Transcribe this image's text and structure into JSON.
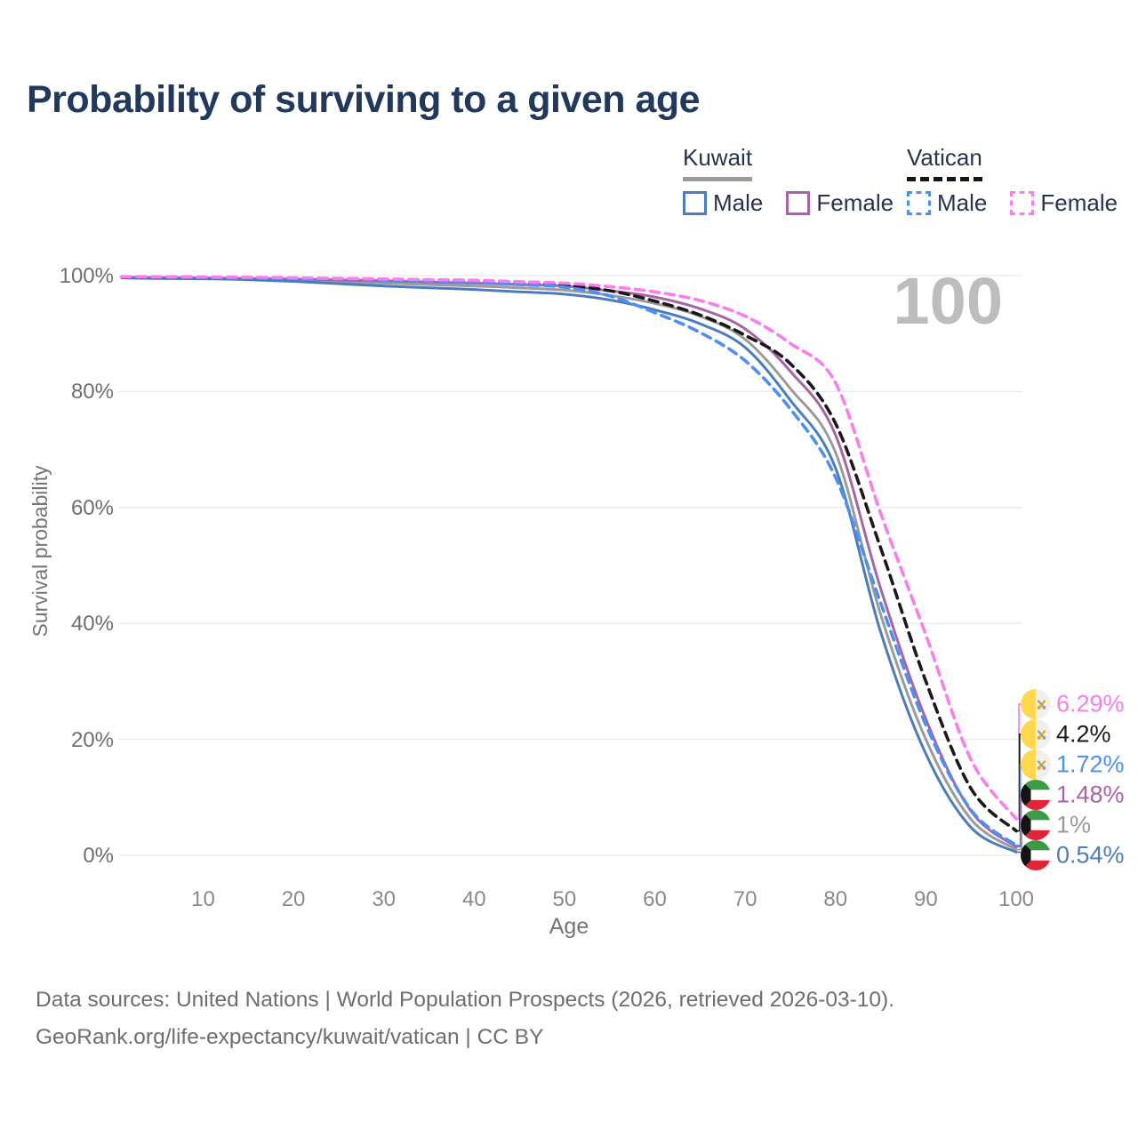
{
  "title": "Probability of surviving to a given age",
  "watermark": "100",
  "legend": {
    "groups": [
      {
        "name": "Kuwait",
        "line_style": "solid",
        "underline_color": "#9b9b9b",
        "items": [
          {
            "label": "Male",
            "color": "#4a7dc0",
            "dashed": false
          },
          {
            "label": "Female",
            "color": "#a963a8",
            "dashed": false
          }
        ]
      },
      {
        "name": "Vatican",
        "line_style": "dashed",
        "underline_color": "#151515",
        "items": [
          {
            "label": "Male",
            "color": "#4a90f7",
            "dashed": true
          },
          {
            "label": "Female",
            "color": "#fc7ced",
            "dashed": true
          }
        ]
      }
    ]
  },
  "axis": {
    "x_label": "Age",
    "y_label": "Survival probability",
    "x_ticks": [
      10,
      20,
      30,
      40,
      50,
      60,
      70,
      80,
      90,
      100
    ],
    "y_ticks": [
      {
        "value": 0,
        "label": "0%"
      },
      {
        "value": 20,
        "label": "20%"
      },
      {
        "value": 40,
        "label": "40%"
      },
      {
        "value": 60,
        "label": "60%"
      },
      {
        "value": 80,
        "label": "80%"
      },
      {
        "value": 100,
        "label": "100%"
      }
    ]
  },
  "chart_data": {
    "type": "line",
    "title": "Probability of surviving to a given age",
    "xlabel": "Age",
    "ylabel": "Survival probability",
    "xlim": [
      1,
      100
    ],
    "ylim": [
      0,
      100
    ],
    "grid": "horizontal",
    "legend_position": "top-right",
    "x": [
      1,
      5,
      10,
      15,
      20,
      25,
      30,
      35,
      40,
      45,
      50,
      55,
      60,
      65,
      70,
      75,
      80,
      85,
      90,
      95,
      100
    ],
    "series": [
      {
        "name": "Kuwait Total",
        "country": "Kuwait",
        "sex": "All",
        "flag": "kuwait",
        "color": "#9b9b9b",
        "dashed": false,
        "end_label": "1%",
        "values": [
          99.65,
          99.6,
          99.5,
          99.4,
          99.2,
          98.95,
          98.7,
          98.45,
          98.2,
          97.9,
          97.5,
          96.6,
          95.2,
          93.0,
          89.0,
          80.5,
          69.5,
          41.5,
          20.0,
          6.2,
          1.0
        ]
      },
      {
        "name": "Kuwait Female",
        "country": "Kuwait",
        "sex": "Female",
        "flag": "kuwait",
        "color": "#a963a8",
        "dashed": false,
        "end_label": "1.48%",
        "values": [
          99.7,
          99.65,
          99.6,
          99.5,
          99.4,
          99.25,
          99.1,
          98.9,
          98.7,
          98.45,
          98.2,
          97.4,
          96.3,
          94.3,
          90.8,
          83.5,
          72.5,
          46.0,
          23.5,
          7.6,
          1.48
        ]
      },
      {
        "name": "Kuwait Male",
        "country": "Kuwait",
        "sex": "Male",
        "flag": "kuwait",
        "color": "#4a7dc0",
        "dashed": false,
        "end_label": "0.54%",
        "values": [
          99.6,
          99.5,
          99.45,
          99.3,
          99.0,
          98.6,
          98.2,
          97.9,
          97.6,
          97.2,
          96.8,
          95.8,
          94.1,
          91.7,
          87.6,
          78.5,
          66.8,
          38.5,
          17.5,
          4.8,
          0.54
        ]
      },
      {
        "name": "Vatican Total",
        "country": "Vatican",
        "sex": "All",
        "flag": "vatican",
        "color": "#1a1a1a",
        "dashed": true,
        "end_label": "4.2%",
        "values": [
          99.8,
          99.77,
          99.72,
          99.65,
          99.55,
          99.45,
          99.3,
          99.15,
          99.0,
          98.7,
          98.35,
          97.4,
          95.6,
          93.2,
          89.7,
          84.8,
          74.5,
          53.0,
          30.0,
          11.5,
          4.2
        ]
      },
      {
        "name": "Vatican Male",
        "country": "Vatican",
        "sex": "Male",
        "flag": "vatican",
        "color": "#4a90f7",
        "dashed": true,
        "end_label": "1.72%",
        "values": [
          99.8,
          99.75,
          99.7,
          99.6,
          99.5,
          99.35,
          99.2,
          99.0,
          98.8,
          98.45,
          98.0,
          96.5,
          93.6,
          90.2,
          85.3,
          77.0,
          65.2,
          43.5,
          22.5,
          7.8,
          1.72
        ]
      },
      {
        "name": "Vatican Female",
        "country": "Vatican",
        "sex": "Female",
        "flag": "vatican",
        "color": "#fc7ced",
        "dashed": true,
        "end_label": "6.29%",
        "values": [
          99.82,
          99.8,
          99.75,
          99.7,
          99.62,
          99.52,
          99.42,
          99.3,
          99.2,
          98.95,
          98.7,
          98.1,
          97.2,
          95.7,
          93.0,
          88.3,
          81.5,
          59.0,
          38.0,
          16.5,
          6.29
        ]
      }
    ]
  },
  "footer": {
    "line1": "Data sources: United Nations | World Population Prospects (2026, retrieved 2026-03-10).",
    "line2": "GeoRank.org/life-expectancy/kuwait/vatican | CC BY"
  }
}
